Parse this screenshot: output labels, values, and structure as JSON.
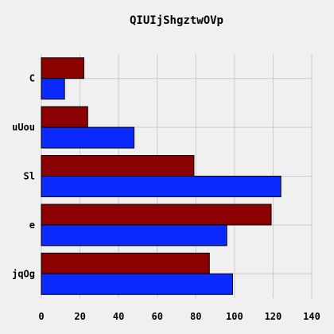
{
  "chart_data": {
    "type": "bar",
    "orientation": "horizontal",
    "title": "QIUIjShgztwOVp",
    "xlabel": "",
    "ylabel": "",
    "categories": [
      "C",
      "uUou",
      "Sl",
      "e",
      "jqOg"
    ],
    "series": [
      {
        "color": "#8b0000",
        "values": [
          22,
          24,
          79,
          119,
          87
        ]
      },
      {
        "color": "#0a2aff",
        "values": [
          12,
          48,
          124,
          96,
          99
        ]
      }
    ],
    "xlim": [
      0,
      140
    ],
    "xticks": [
      0,
      20,
      40,
      60,
      80,
      100,
      120,
      140
    ],
    "grid": true,
    "legend": "none"
  }
}
